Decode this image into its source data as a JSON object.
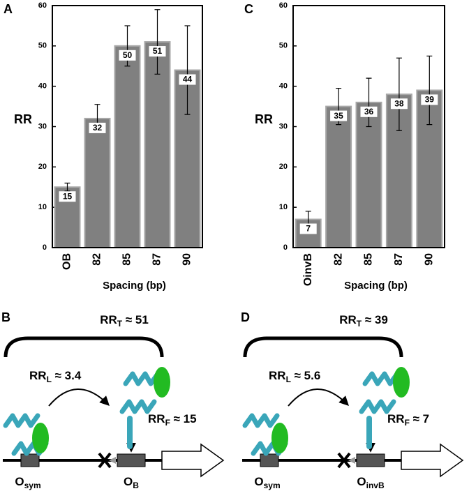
{
  "chart_data": [
    {
      "type": "bar",
      "panel": "A",
      "ylabel": "RR",
      "xlabel": "Spacing (bp)",
      "categories": [
        "OB",
        "82",
        "85",
        "87",
        "90"
      ],
      "values": [
        15,
        32,
        50,
        51,
        44
      ],
      "errors": [
        1,
        3.5,
        5,
        8,
        11
      ],
      "color": "#808080",
      "ylim": [
        0,
        60
      ],
      "yticks": [
        0,
        10,
        20,
        30,
        40,
        50,
        60
      ]
    },
    {
      "type": "bar",
      "panel": "C",
      "ylabel": "RR",
      "xlabel": "Spacing (bp)",
      "categories": [
        "OinvB",
        "82",
        "85",
        "87",
        "90"
      ],
      "values": [
        7,
        35,
        36,
        38,
        39
      ],
      "errors": [
        2,
        4.5,
        6,
        9,
        8.5
      ],
      "color": "#808080",
      "ylim": [
        0,
        60
      ],
      "yticks": [
        0,
        10,
        20,
        30,
        40,
        50,
        60
      ]
    }
  ],
  "diagrams": [
    {
      "panel": "B",
      "rr_t": {
        "base": "RR",
        "sub": "T",
        "rest": " ≈ 51"
      },
      "rr_l": {
        "base": "RR",
        "sub": "L",
        "rest": " ≈ 3.4"
      },
      "rr_f": {
        "base": "RR",
        "sub": "F",
        "rest": " ≈ 15"
      },
      "left_site": {
        "base": "O",
        "sub": "sym"
      },
      "right_site": {
        "base": "O",
        "sub": "B"
      }
    },
    {
      "panel": "D",
      "rr_t": {
        "base": "RR",
        "sub": "T",
        "rest": " ≈ 39"
      },
      "rr_l": {
        "base": "RR",
        "sub": "L",
        "rest": " ≈ 5.6"
      },
      "rr_f": {
        "base": "RR",
        "sub": "F",
        "rest": " ≈ 7"
      },
      "left_site": {
        "base": "O",
        "sub": "sym"
      },
      "right_site": {
        "base": "O",
        "sub": "invB"
      }
    }
  ]
}
